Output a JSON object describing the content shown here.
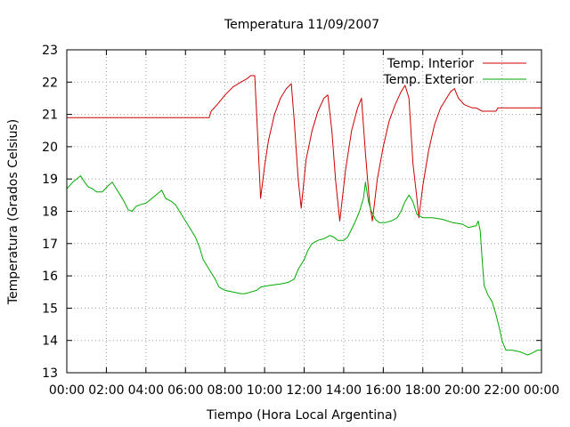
{
  "chart_data": {
    "type": "line",
    "title": "Temperatura 11/09/2007",
    "xlabel": "Tiempo (Hora Local Argentina)",
    "ylabel": "Temperatura (Grados Celsius)",
    "xlim": [
      0,
      24
    ],
    "ylim": [
      13,
      23
    ],
    "x_ticks": [
      {
        "value": 0,
        "label": "00:00"
      },
      {
        "value": 2,
        "label": "02:00"
      },
      {
        "value": 4,
        "label": "04:00"
      },
      {
        "value": 6,
        "label": "06:00"
      },
      {
        "value": 8,
        "label": "08:00"
      },
      {
        "value": 10,
        "label": "10:00"
      },
      {
        "value": 12,
        "label": "12:00"
      },
      {
        "value": 14,
        "label": "14:00"
      },
      {
        "value": 16,
        "label": "16:00"
      },
      {
        "value": 18,
        "label": "18:00"
      },
      {
        "value": 20,
        "label": "20:00"
      },
      {
        "value": 22,
        "label": "22:00"
      },
      {
        "value": 24,
        "label": "00:00"
      }
    ],
    "y_ticks": [
      13,
      14,
      15,
      16,
      17,
      18,
      19,
      20,
      21,
      22,
      23
    ],
    "grid": true,
    "legend_position": "top-right",
    "series": [
      {
        "name": "Temp. Interior",
        "color": "#cc0000",
        "points": [
          [
            0.0,
            20.9
          ],
          [
            7.2,
            20.9
          ],
          [
            7.3,
            21.1
          ],
          [
            7.6,
            21.3
          ],
          [
            8.0,
            21.6
          ],
          [
            8.4,
            21.85
          ],
          [
            8.8,
            22.0
          ],
          [
            9.1,
            22.1
          ],
          [
            9.3,
            22.2
          ],
          [
            9.5,
            22.2
          ],
          [
            9.6,
            21.0
          ],
          [
            9.8,
            18.4
          ],
          [
            10.0,
            19.4
          ],
          [
            10.2,
            20.2
          ],
          [
            10.5,
            21.0
          ],
          [
            10.8,
            21.5
          ],
          [
            11.1,
            21.8
          ],
          [
            11.35,
            21.95
          ],
          [
            11.5,
            20.8
          ],
          [
            11.7,
            19.0
          ],
          [
            11.85,
            18.1
          ],
          [
            12.1,
            19.6
          ],
          [
            12.4,
            20.5
          ],
          [
            12.7,
            21.1
          ],
          [
            13.0,
            21.5
          ],
          [
            13.2,
            21.6
          ],
          [
            13.4,
            20.5
          ],
          [
            13.6,
            18.9
          ],
          [
            13.8,
            17.7
          ],
          [
            14.1,
            19.3
          ],
          [
            14.4,
            20.5
          ],
          [
            14.7,
            21.2
          ],
          [
            14.9,
            21.5
          ],
          [
            15.1,
            19.8
          ],
          [
            15.3,
            18.3
          ],
          [
            15.45,
            17.7
          ],
          [
            15.7,
            19.0
          ],
          [
            16.0,
            20.0
          ],
          [
            16.3,
            20.8
          ],
          [
            16.6,
            21.3
          ],
          [
            16.9,
            21.7
          ],
          [
            17.1,
            21.9
          ],
          [
            17.3,
            21.5
          ],
          [
            17.5,
            19.5
          ],
          [
            17.7,
            18.4
          ],
          [
            17.8,
            17.8
          ],
          [
            18.0,
            18.8
          ],
          [
            18.3,
            19.9
          ],
          [
            18.6,
            20.7
          ],
          [
            18.9,
            21.2
          ],
          [
            19.2,
            21.5
          ],
          [
            19.4,
            21.7
          ],
          [
            19.6,
            21.8
          ],
          [
            19.8,
            21.5
          ],
          [
            20.1,
            21.3
          ],
          [
            20.5,
            21.2
          ],
          [
            20.7,
            21.2
          ],
          [
            21.0,
            21.1
          ],
          [
            21.7,
            21.1
          ],
          [
            21.8,
            21.2
          ],
          [
            24.0,
            21.2
          ]
        ]
      },
      {
        "name": "Temp. Exterior",
        "color": "#00aa00",
        "points": [
          [
            0.0,
            18.7
          ],
          [
            0.3,
            18.9
          ],
          [
            0.5,
            19.0
          ],
          [
            0.7,
            19.1
          ],
          [
            0.9,
            18.9
          ],
          [
            1.1,
            18.75
          ],
          [
            1.3,
            18.7
          ],
          [
            1.5,
            18.6
          ],
          [
            1.8,
            18.6
          ],
          [
            2.1,
            18.8
          ],
          [
            2.3,
            18.9
          ],
          [
            2.5,
            18.7
          ],
          [
            2.7,
            18.5
          ],
          [
            2.9,
            18.3
          ],
          [
            3.1,
            18.05
          ],
          [
            3.3,
            18.0
          ],
          [
            3.5,
            18.15
          ],
          [
            3.7,
            18.2
          ],
          [
            4.0,
            18.25
          ],
          [
            4.2,
            18.35
          ],
          [
            4.4,
            18.45
          ],
          [
            4.6,
            18.55
          ],
          [
            4.8,
            18.65
          ],
          [
            5.0,
            18.4
          ],
          [
            5.3,
            18.3
          ],
          [
            5.5,
            18.2
          ],
          [
            5.7,
            18.0
          ],
          [
            5.9,
            17.8
          ],
          [
            6.1,
            17.6
          ],
          [
            6.3,
            17.4
          ],
          [
            6.5,
            17.2
          ],
          [
            6.7,
            16.9
          ],
          [
            6.9,
            16.5
          ],
          [
            7.1,
            16.3
          ],
          [
            7.3,
            16.1
          ],
          [
            7.5,
            15.9
          ],
          [
            7.7,
            15.65
          ],
          [
            8.0,
            15.55
          ],
          [
            8.4,
            15.5
          ],
          [
            8.8,
            15.45
          ],
          [
            9.0,
            15.45
          ],
          [
            9.3,
            15.5
          ],
          [
            9.6,
            15.55
          ],
          [
            9.8,
            15.65
          ],
          [
            10.2,
            15.7
          ],
          [
            10.8,
            15.75
          ],
          [
            11.2,
            15.8
          ],
          [
            11.5,
            15.9
          ],
          [
            11.7,
            16.2
          ],
          [
            12.0,
            16.5
          ],
          [
            12.2,
            16.8
          ],
          [
            12.4,
            17.0
          ],
          [
            12.7,
            17.1
          ],
          [
            13.0,
            17.15
          ],
          [
            13.3,
            17.25
          ],
          [
            13.5,
            17.2
          ],
          [
            13.7,
            17.1
          ],
          [
            14.0,
            17.1
          ],
          [
            14.2,
            17.2
          ],
          [
            14.4,
            17.45
          ],
          [
            14.6,
            17.7
          ],
          [
            14.8,
            18.0
          ],
          [
            15.0,
            18.4
          ],
          [
            15.1,
            18.9
          ],
          [
            15.25,
            18.3
          ],
          [
            15.4,
            18.0
          ],
          [
            15.6,
            17.75
          ],
          [
            15.8,
            17.65
          ],
          [
            16.1,
            17.65
          ],
          [
            16.4,
            17.7
          ],
          [
            16.7,
            17.8
          ],
          [
            16.9,
            18.0
          ],
          [
            17.1,
            18.3
          ],
          [
            17.3,
            18.5
          ],
          [
            17.5,
            18.3
          ],
          [
            17.7,
            17.9
          ],
          [
            18.0,
            17.8
          ],
          [
            18.5,
            17.8
          ],
          [
            19.0,
            17.75
          ],
          [
            19.5,
            17.65
          ],
          [
            20.0,
            17.6
          ],
          [
            20.3,
            17.5
          ],
          [
            20.7,
            17.55
          ],
          [
            20.8,
            17.7
          ],
          [
            20.9,
            17.4
          ],
          [
            21.0,
            16.5
          ],
          [
            21.1,
            15.7
          ],
          [
            21.3,
            15.4
          ],
          [
            21.5,
            15.2
          ],
          [
            21.7,
            14.8
          ],
          [
            21.9,
            14.3
          ],
          [
            22.0,
            14.0
          ],
          [
            22.2,
            13.7
          ],
          [
            22.5,
            13.7
          ],
          [
            22.9,
            13.65
          ],
          [
            23.1,
            13.6
          ],
          [
            23.3,
            13.55
          ],
          [
            23.5,
            13.6
          ],
          [
            23.8,
            13.7
          ],
          [
            24.0,
            13.7
          ]
        ]
      }
    ]
  }
}
